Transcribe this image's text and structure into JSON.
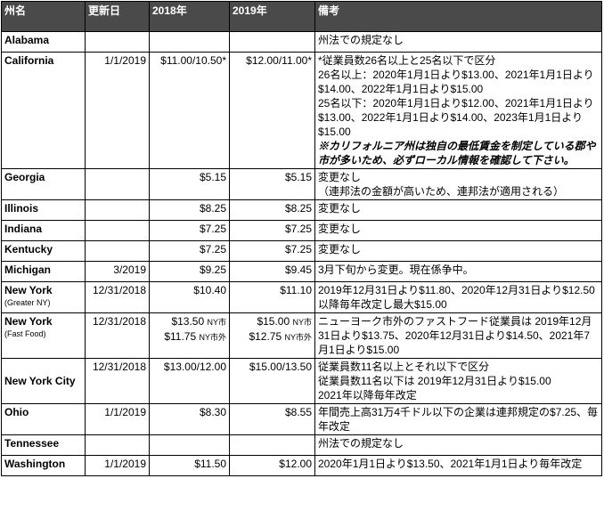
{
  "headers": [
    "州名",
    "更新日",
    "2018年",
    "2019年",
    "備考"
  ],
  "rows": [
    {
      "state": "Alabama",
      "sub": "",
      "date": "",
      "y2018": "",
      "y2019": "",
      "notes": [
        "州法での規定なし"
      ],
      "note_em": ""
    },
    {
      "state": "California",
      "sub": "",
      "date": "1/1/2019",
      "y2018": "$11.00/10.50*",
      "y2019": "$12.00/11.00*",
      "notes": [
        "*従業員数26名以上と25名以下で区分",
        "26名以上：2020年1月1日より$13.00、2021年1月1日より$14.00、2022年1月1日より$15.00",
        "25名以下：2020年1月1日より$12.00、2021年1月1日より$13.00、2022年1月1日より$14.00、2023年1月1日より$15.00"
      ],
      "note_em": "※カリフォルニア州は独自の最低賃金を制定している郡や市が多いため、必ずローカル情報を確認して下さい。"
    },
    {
      "state": "Georgia",
      "sub": "",
      "date": "",
      "y2018": "$5.15",
      "y2019": "$5.15",
      "notes": [
        "変更なし",
        "（連邦法の金額が高いため、連邦法が適用される）"
      ],
      "note_em": ""
    },
    {
      "state": "Illinois",
      "sub": "",
      "date": "",
      "y2018": "$8.25",
      "y2019": "$8.25",
      "notes": [
        "変更なし"
      ],
      "note_em": ""
    },
    {
      "state": "Indiana",
      "sub": "",
      "date": "",
      "y2018": "$7.25",
      "y2019": "$7.25",
      "notes": [
        "変更なし"
      ],
      "note_em": ""
    },
    {
      "state": "Kentucky",
      "sub": "",
      "date": "",
      "y2018": "$7.25",
      "y2019": "$7.25",
      "notes": [
        "変更なし"
      ],
      "note_em": ""
    },
    {
      "state": "Michigan",
      "sub": "",
      "date": "3/2019",
      "y2018": "$9.25",
      "y2019": "$9.45",
      "notes": [
        "3月下旬から変更。現在係争中。"
      ],
      "note_em": ""
    },
    {
      "state": "New York",
      "sub": "(Greater NY)",
      "date": "12/31/2018",
      "y2018": "$10.40",
      "y2019": "$11.10",
      "notes": [
        "2019年12月31日より$11.80、2020年12月31日より$12.50以降毎年改定し最大$15.00"
      ],
      "note_em": ""
    },
    {
      "state": "New York",
      "sub": "(Fast Food)",
      "date": "12/31/2018",
      "y2018_a": "$13.50",
      "y2018_a_tag": "NY市",
      "y2018_b": "$11.75",
      "y2018_b_tag": "NY市外",
      "y2019_a": "$15.00",
      "y2019_a_tag": "NY市",
      "y2019_b": "$12.75",
      "y2019_b_tag": "NY市外",
      "notes": [
        "ニューヨーク市外のファストフード従業員は 2019年12月31日より$13.75、2020年12月31日より$14.50、2021年7月1日より$15.00"
      ],
      "note_em": ""
    },
    {
      "state": "New York City",
      "sub": "",
      "date": "12/31/2018",
      "y2018": "$13.00/12.00",
      "y2019": "$15.00/13.50",
      "notes": [
        "従業員数11名以上とそれ以下で区分",
        "従業員数11名以下は 2019年12月31日より$15.00",
        "2021年以降毎年改定"
      ],
      "note_em": ""
    },
    {
      "state": "Ohio",
      "sub": "",
      "date": "1/1/2019",
      "y2018": "$8.30",
      "y2019": "$8.55",
      "notes": [
        "年間売上高31万4千ドル以下の企業は連邦規定の$7.25、毎年改定"
      ],
      "note_em": ""
    },
    {
      "state": "Tennessee",
      "sub": "",
      "date": "",
      "y2018": "",
      "y2019": "",
      "notes": [
        "州法での規定なし"
      ],
      "note_em": ""
    },
    {
      "state": "Washington",
      "sub": "",
      "date": "1/1/2019",
      "y2018": "$11.50",
      "y2019": "$12.00",
      "notes": [
        "2020年1月1日より$13.50、2021年1月1日より毎年改定"
      ],
      "note_em": ""
    }
  ]
}
